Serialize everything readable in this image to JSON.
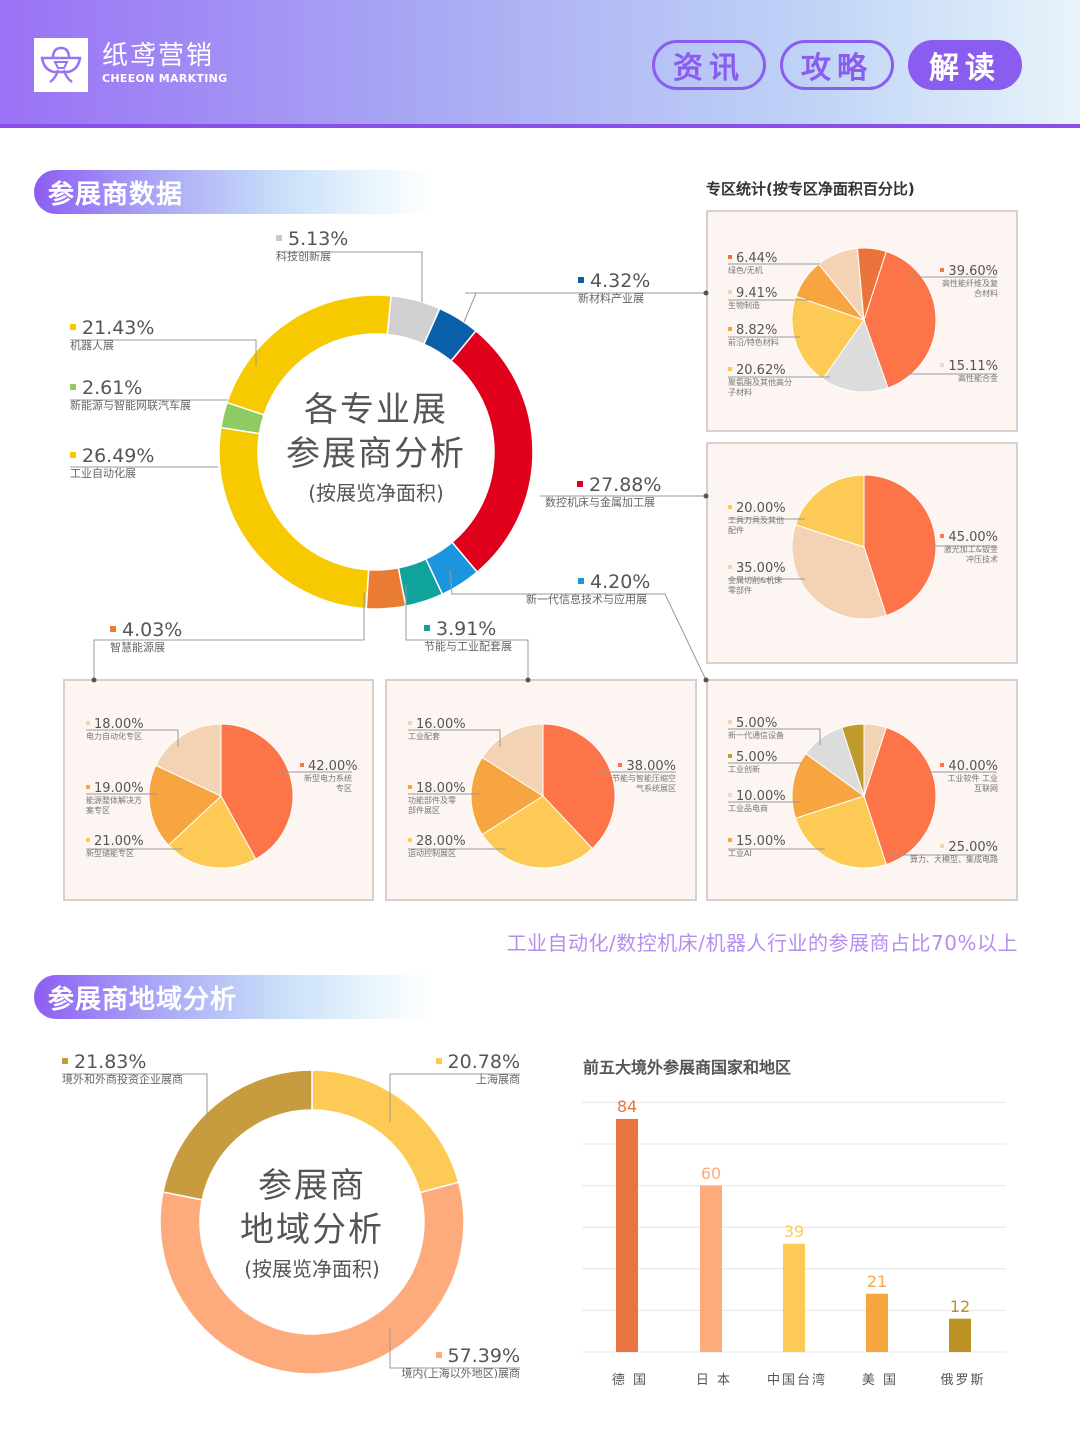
{
  "header": {
    "logo_cn": "纸鸢营销",
    "logo_en": "CHEEON MARKTING",
    "nav": [
      {
        "label": "资讯",
        "active": false
      },
      {
        "label": "攻略",
        "active": false
      },
      {
        "label": "解读",
        "active": true
      }
    ],
    "accent": "#8b5cf0"
  },
  "section1": {
    "title": "参展商数据",
    "donut_center": {
      "line1": "各专业展",
      "line2": "参展商分析",
      "line3": "(按展览净面积)"
    },
    "panel_title": "专区统计(按专区净面积百分比)",
    "highlight": "工业自动化/数控机床/机器人行业的参展商占比70%以上"
  },
  "section2": {
    "title": "参展商地域分析",
    "donut_center": {
      "line1": "参展商",
      "line2": "地域分析",
      "line3": "(按展览净面积)"
    },
    "bar_title": "前五大境外参展商国家和地区"
  },
  "chart_data": [
    {
      "type": "pie",
      "variant": "donut",
      "title": "各专业展参展商分析(按展览净面积)",
      "slices": [
        {
          "label": "科技创新展",
          "value": 5.13,
          "pct": "5.13%",
          "color": "#d0d0d0"
        },
        {
          "label": "新材料产业展",
          "value": 4.32,
          "pct": "4.32%",
          "color": "#0b5ea8"
        },
        {
          "label": "数控机床与金属加工展",
          "value": 27.88,
          "pct": "27.88%",
          "color": "#e0001b"
        },
        {
          "label": "新一代信息技术与应用展",
          "value": 4.2,
          "pct": "4.20%",
          "color": "#1b95de"
        },
        {
          "label": "节能与工业配套展",
          "value": 3.91,
          "pct": "3.91%",
          "color": "#0fa39c"
        },
        {
          "label": "智慧能源展",
          "value": 4.03,
          "pct": "4.03%",
          "color": "#e97b34"
        },
        {
          "label": "工业自动化展",
          "value": 26.49,
          "pct": "26.49%",
          "color": "#f7c900"
        },
        {
          "label": "新能源与智能网联汽车展",
          "value": 2.61,
          "pct": "2.61%",
          "color": "#8fcb63"
        },
        {
          "label": "机器人展",
          "value": 21.43,
          "pct": "21.43%",
          "color": "#f7c900"
        }
      ]
    },
    {
      "type": "pie",
      "title": "新材料产业展 专区统计",
      "slices": [
        {
          "label": "高性能纤维及复合材料",
          "value": 39.6,
          "pct": "39.60%",
          "color": "#fd7449"
        },
        {
          "label": "高性能合金",
          "value": 15.11,
          "pct": "15.11%",
          "color": "#dcdcdc"
        },
        {
          "label": "聚氨酯及其他高分子材料",
          "value": 20.62,
          "pct": "20.62%",
          "color": "#fdca55"
        },
        {
          "label": "前沿/特色材料",
          "value": 8.82,
          "pct": "8.82%",
          "color": "#f6a540"
        },
        {
          "label": "生物制造",
          "value": 9.41,
          "pct": "9.41%",
          "color": "#f4d3b5"
        },
        {
          "label": "绿色/无机",
          "value": 6.44,
          "pct": "6.44%",
          "color": "#e9733a"
        }
      ]
    },
    {
      "type": "pie",
      "title": "数控机床与金属加工展 专区统计",
      "slices": [
        {
          "label": "激光加工&钣金冲压技术",
          "value": 45.0,
          "pct": "45.00%",
          "color": "#fd7449"
        },
        {
          "label": "金属切削&机床零部件",
          "value": 35.0,
          "pct": "35.00%",
          "color": "#f4d3b5"
        },
        {
          "label": "工具刀具及其他配件",
          "value": 20.0,
          "pct": "20.00%",
          "color": "#fdca55"
        }
      ]
    },
    {
      "type": "pie",
      "title": "智慧能源展 专区统计",
      "slices": [
        {
          "label": "新型电力系统专区",
          "value": 42.0,
          "pct": "42.00%",
          "color": "#fd7449"
        },
        {
          "label": "新型储能专区",
          "value": 21.0,
          "pct": "21.00%",
          "color": "#fdca55"
        },
        {
          "label": "能源整体解决方案专区",
          "value": 19.0,
          "pct": "19.00%",
          "color": "#f6a540"
        },
        {
          "label": "电力自动化专区",
          "value": 18.0,
          "pct": "18.00%",
          "color": "#f4d3b5"
        }
      ]
    },
    {
      "type": "pie",
      "title": "节能与工业配套展 专区统计",
      "slices": [
        {
          "label": "节能与智能压缩空气系统展区",
          "value": 38.0,
          "pct": "38.00%",
          "color": "#fd7449"
        },
        {
          "label": "运动控制展区",
          "value": 28.0,
          "pct": "28.00%",
          "color": "#fdca55"
        },
        {
          "label": "功能部件及零部件展区",
          "value": 18.0,
          "pct": "18.00%",
          "color": "#f6a540"
        },
        {
          "label": "工业配套",
          "value": 16.0,
          "pct": "16.00%",
          "color": "#f4d3b5"
        }
      ]
    },
    {
      "type": "pie",
      "title": "新一代信息技术与应用展 专区统计",
      "slices": [
        {
          "label": "工业软件 工业互联网",
          "value": 40.0,
          "pct": "40.00%",
          "color": "#fd7449"
        },
        {
          "label": "算力、大模型、集成电路",
          "value": 25.0,
          "pct": "25.00%",
          "color": "#fdca55"
        },
        {
          "label": "工业AI",
          "value": 15.0,
          "pct": "15.00%",
          "color": "#f6a540"
        },
        {
          "label": "工业品电商",
          "value": 10.0,
          "pct": "10.00%",
          "color": "#dcdcdc"
        },
        {
          "label": "工业创新",
          "value": 5.0,
          "pct": "5.00%",
          "color": "#c19a2e"
        },
        {
          "label": "新一代通信设备",
          "value": 5.0,
          "pct": "5.00%",
          "color": "#f4d3b5"
        }
      ]
    },
    {
      "type": "pie",
      "variant": "donut",
      "title": "参展商地域分析(按展览净面积)",
      "slices": [
        {
          "label": "上海展商",
          "value": 20.78,
          "pct": "20.78%",
          "color": "#fdca55"
        },
        {
          "label": "境内(上海以外地区)展商",
          "value": 57.39,
          "pct": "57.39%",
          "color": "#fdab7d"
        },
        {
          "label": "境外和外商投资企业展商",
          "value": 21.83,
          "pct": "21.83%",
          "color": "#c79c3e"
        }
      ]
    },
    {
      "type": "bar",
      "title": "前五大境外参展商国家和地区",
      "categories": [
        "德 国",
        "日 本",
        "中国台湾",
        "美 国",
        "俄罗斯"
      ],
      "values": [
        84,
        60,
        39,
        21,
        12
      ],
      "colors": [
        "#e97440",
        "#fdab7d",
        "#fdca55",
        "#f6a540",
        "#bc9224"
      ],
      "xlabel": "",
      "ylabel": "",
      "ylim": [
        0,
        120
      ],
      "grid": true
    }
  ]
}
